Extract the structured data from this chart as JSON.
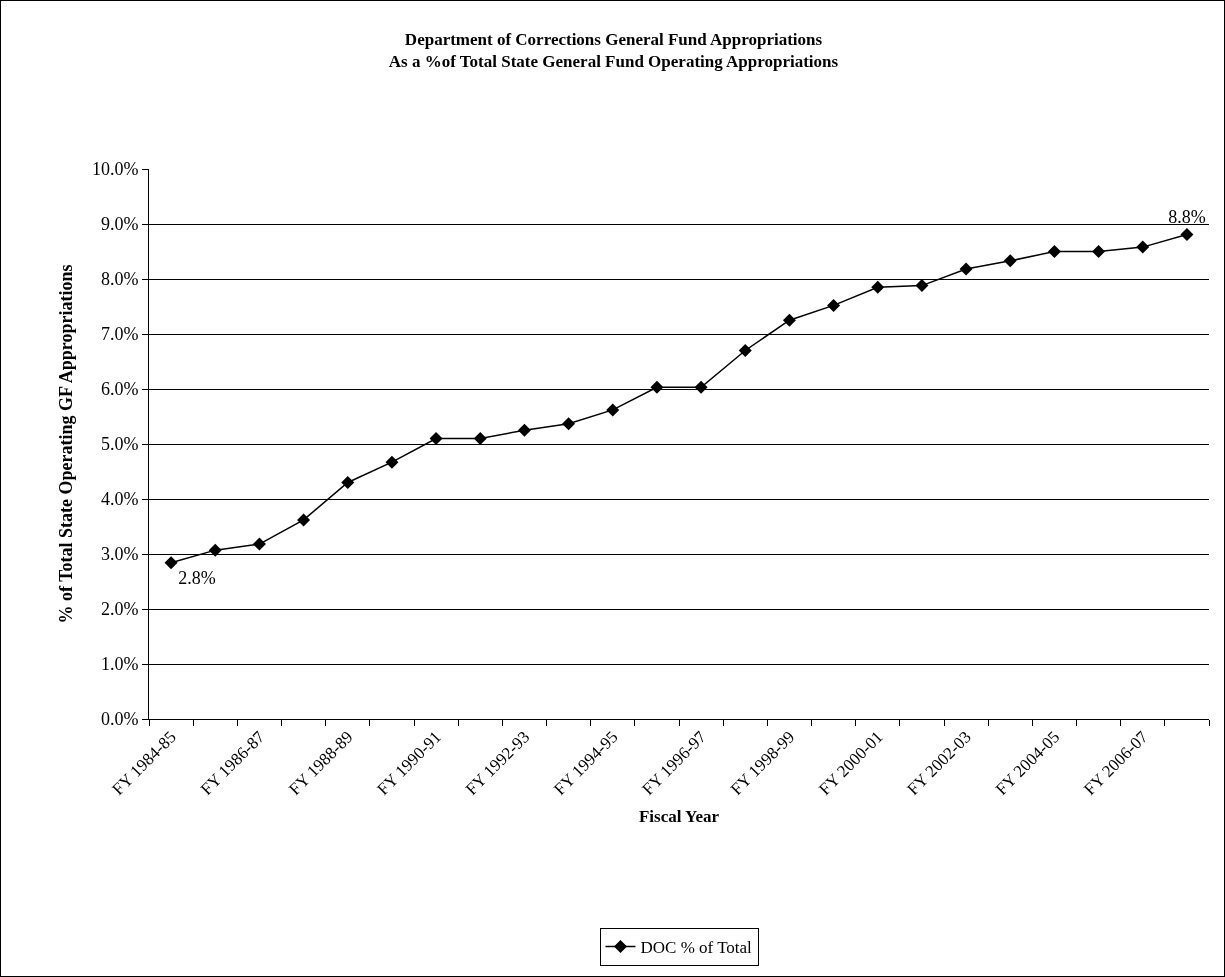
{
  "chart_data": {
    "type": "line",
    "title": "Department of Corrections General Fund Appropriations\nAs a %of Total State General Fund Operating Appropriations",
    "xlabel": "Fiscal Year",
    "ylabel": "% of Total State Operating GF Appropriations",
    "categories": [
      "FY 1984-85",
      null,
      "FY 1986-87",
      null,
      "FY 1988-89",
      null,
      "FY 1990-91",
      null,
      "FY 1992-93",
      null,
      "FY 1994-95",
      null,
      "FY 1996-97",
      null,
      "FY 1998-99",
      null,
      "FY 2000-01",
      null,
      "FY 2002-03",
      null,
      "FY 2004-05",
      null,
      "FY 2006-07",
      null
    ],
    "series": [
      {
        "name": "DOC % of Total",
        "color": "#000000",
        "values": [
          2.84,
          3.07,
          3.18,
          3.62,
          4.3,
          4.67,
          5.1,
          5.1,
          5.25,
          5.37,
          5.62,
          6.03,
          6.03,
          6.7,
          7.25,
          7.52,
          7.85,
          7.88,
          8.18,
          8.33,
          8.5,
          8.5,
          8.58,
          8.81
        ],
        "value_labels": [
          "2.8%",
          null,
          null,
          null,
          null,
          null,
          null,
          null,
          null,
          null,
          null,
          null,
          null,
          null,
          null,
          null,
          null,
          null,
          null,
          null,
          null,
          null,
          null,
          "8.8%"
        ]
      }
    ],
    "ylim": [
      0,
      10
    ],
    "yticks": [
      {
        "value": 0,
        "label": "0.0%"
      },
      {
        "value": 1,
        "label": "1.0%"
      },
      {
        "value": 2,
        "label": "2.0%"
      },
      {
        "value": 3,
        "label": "3.0%"
      },
      {
        "value": 4,
        "label": "4.0%"
      },
      {
        "value": 5,
        "label": "5.0%"
      },
      {
        "value": 6,
        "label": "6.0%"
      },
      {
        "value": 7,
        "label": "7.0%"
      },
      {
        "value": 8,
        "label": "8.0%"
      },
      {
        "value": 9,
        "label": "9.0%"
      },
      {
        "value": 10,
        "label": "10.0%"
      }
    ],
    "grid": "y",
    "legend": "bottom",
    "marker": "diamond",
    "line_style": "solid"
  }
}
